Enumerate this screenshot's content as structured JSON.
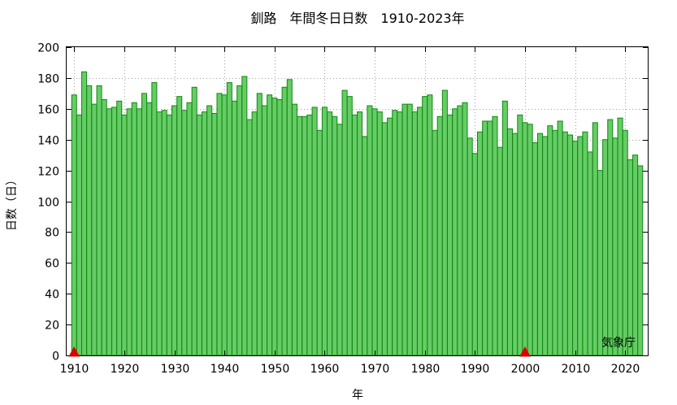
{
  "chart_data": {
    "type": "bar",
    "title": "釧路　年間冬日日数　1910-2023年",
    "xlabel": "年",
    "ylabel": "日数（日）",
    "source": "気象庁",
    "xlim": [
      1908.5,
      2024.5
    ],
    "ylim": [
      0,
      200
    ],
    "y_ticks": [
      0,
      20,
      40,
      60,
      80,
      100,
      120,
      140,
      160,
      180,
      200
    ],
    "x_ticks": [
      1910,
      1920,
      1930,
      1940,
      1950,
      1960,
      1970,
      1980,
      1990,
      2000,
      2010,
      2020
    ],
    "grid": true,
    "start_year": 1910,
    "values": [
      169,
      156,
      184,
      175,
      163,
      175,
      166,
      160,
      161,
      165,
      156,
      160,
      164,
      160,
      170,
      164,
      177,
      158,
      159,
      156,
      162,
      168,
      159,
      164,
      174,
      156,
      158,
      162,
      157,
      170,
      169,
      177,
      165,
      175,
      181,
      153,
      158,
      170,
      162,
      169,
      167,
      166,
      174,
      179,
      163,
      155,
      155,
      156,
      161,
      146,
      161,
      158,
      155,
      150,
      172,
      168,
      156,
      158,
      142,
      162,
      160,
      158,
      151,
      154,
      159,
      158,
      163,
      163,
      158,
      161,
      168,
      169,
      146,
      155,
      172,
      156,
      160,
      162,
      164,
      141,
      131,
      145,
      152,
      152,
      155,
      135,
      165,
      147,
      144,
      156,
      151,
      150,
      138,
      144,
      142,
      149,
      146,
      152,
      145,
      143,
      139,
      142,
      145,
      132,
      151,
      120,
      140,
      153,
      141,
      154,
      146,
      127,
      130,
      123
    ],
    "markers": [
      {
        "year": 1910,
        "color": "#dd0000"
      },
      {
        "year": 2000,
        "color": "#dd0000"
      }
    ],
    "bar_fill": "#66cc66",
    "bar_stroke": "#118811"
  }
}
